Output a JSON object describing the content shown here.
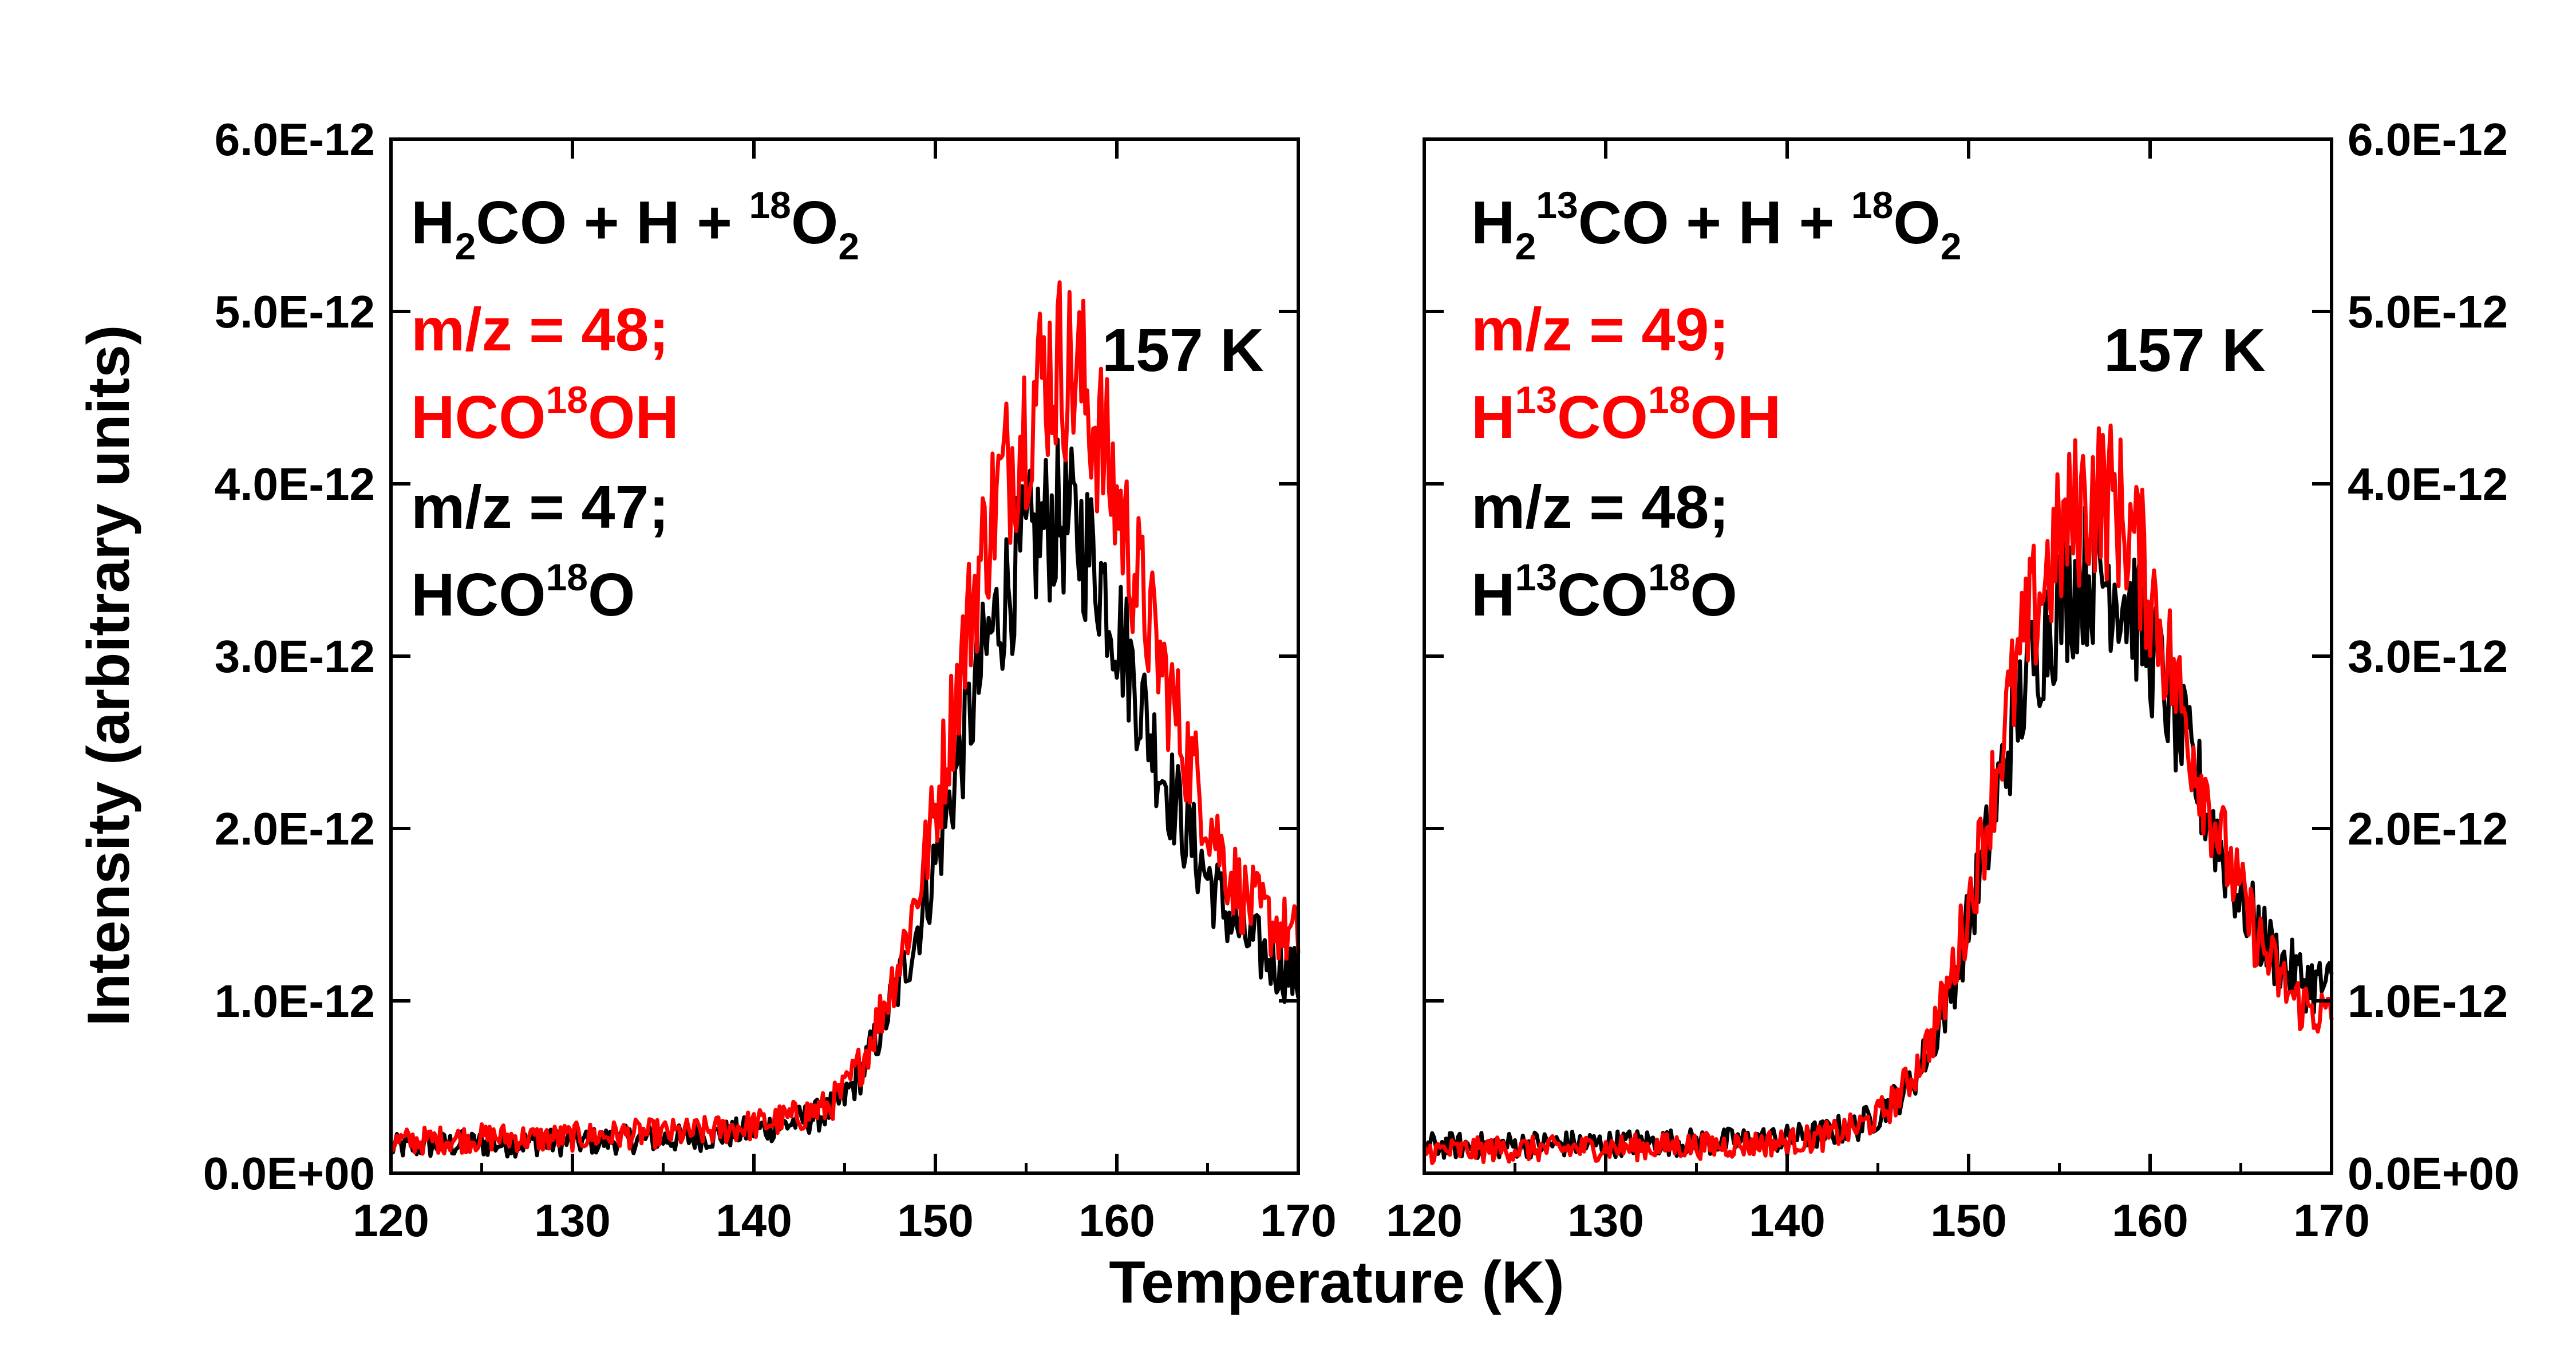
{
  "chart_data": [
    {
      "type": "line",
      "panel": "left",
      "x_range": [
        120,
        170
      ],
      "y_range": [
        0,
        6e-12
      ],
      "xlabel": "Temperature (K)",
      "ylabel": "Intensity (arbitrary units)",
      "x_ticks": [
        "120",
        "130",
        "140",
        "150",
        "160",
        "170"
      ],
      "y_ticks": [
        "0.0E+00",
        "1.0E-12",
        "2.0E-12",
        "3.0E-12",
        "4.0E-12",
        "5.0E-12",
        "6.0E-12"
      ],
      "y_axis_side": "left",
      "annotation": {
        "title_parts": [
          "H",
          "2",
          "CO + H + ",
          "18",
          "O",
          "2"
        ],
        "red_mz": "m/z = 48;",
        "red_species_parts": [
          "HCO",
          "18",
          "OH"
        ],
        "black_mz": "m/z = 47;",
        "black_species_parts": [
          "HCO",
          "18",
          "O"
        ],
        "peak_label": "157 K"
      },
      "series": [
        {
          "name": "m/z = 48; HCO18OH",
          "color": "#ff0000",
          "x": [
            120,
            122,
            124,
            126,
            128,
            130,
            132,
            134,
            136,
            138,
            140,
            142,
            144,
            145,
            146,
            147,
            148,
            149,
            150,
            151,
            152,
            153,
            154,
            155,
            156,
            157,
            158,
            159,
            160,
            161,
            162,
            163,
            164,
            165,
            166,
            167,
            168,
            169,
            170
          ],
          "y": [
            1.8e-13,
            1.9e-13,
            2e-13,
            2.1e-13,
            2e-13,
            2.1e-13,
            2.2e-13,
            2.3e-13,
            2.3e-13,
            2.5e-13,
            2.8e-13,
            3.2e-13,
            3.8e-13,
            4.8e-13,
            6.6e-13,
            9.3e-13,
            1.23e-12,
            1.62e-12,
            2.1e-12,
            2.7e-12,
            3.3e-12,
            3.8e-12,
            4.1e-12,
            4.4e-12,
            4.65e-12,
            4.7e-12,
            4.6e-12,
            4.3e-12,
            3.9e-12,
            3.5e-12,
            3.1e-12,
            2.75e-12,
            2.4e-12,
            2.1e-12,
            1.8e-12,
            1.6e-12,
            1.5e-12,
            1.42e-12,
            1.35e-12
          ]
        },
        {
          "name": "m/z = 47; HCO18O",
          "color": "#000000",
          "x": [
            120,
            122,
            124,
            126,
            128,
            130,
            132,
            134,
            136,
            138,
            140,
            142,
            144,
            145,
            146,
            147,
            148,
            149,
            150,
            151,
            152,
            153,
            154,
            155,
            156,
            157,
            158,
            159,
            160,
            161,
            162,
            163,
            164,
            165,
            166,
            167,
            168,
            169,
            170
          ],
          "y": [
            1.5e-13,
            1.6e-13,
            1.7e-13,
            1.7e-13,
            1.8e-13,
            1.8e-13,
            1.9e-13,
            2e-13,
            2e-13,
            2.2e-13,
            2.5e-13,
            2.9e-13,
            3.5e-13,
            4.4e-13,
            6e-13,
            8.4e-13,
            1.1e-12,
            1.42e-12,
            1.8e-12,
            2.25e-12,
            2.7e-12,
            3.1e-12,
            3.4e-12,
            3.6e-12,
            3.75e-12,
            3.8e-12,
            3.7e-12,
            3.5e-12,
            3.2e-12,
            2.85e-12,
            2.5e-12,
            2.2e-12,
            1.95e-12,
            1.72e-12,
            1.52e-12,
            1.38e-12,
            1.28e-12,
            1.2e-12,
            1.12e-12
          ]
        }
      ]
    },
    {
      "type": "line",
      "panel": "right",
      "x_range": [
        120,
        170
      ],
      "y_range": [
        0,
        6e-12
      ],
      "xlabel": "Temperature (K)",
      "x_ticks": [
        "120",
        "130",
        "140",
        "150",
        "160",
        "170"
      ],
      "y_ticks": [
        "0.0E+00",
        "1.0E-12",
        "2.0E-12",
        "3.0E-12",
        "4.0E-12",
        "5.0E-12",
        "6.0E-12"
      ],
      "y_axis_side": "right",
      "annotation": {
        "title_parts": [
          "H",
          "2",
          "13",
          "CO + H + ",
          "18",
          "O",
          "2"
        ],
        "red_mz": "m/z = 49;",
        "red_species_parts": [
          "H",
          "13",
          "CO",
          "18",
          "OH"
        ],
        "black_mz": "m/z = 48;",
        "black_species_parts": [
          "H",
          "13",
          "CO",
          "18",
          "O"
        ],
        "peak_label": "157 K"
      },
      "series": [
        {
          "name": "m/z = 49; H13CO18OH",
          "color": "#ff0000",
          "x": [
            120,
            122,
            124,
            126,
            128,
            130,
            132,
            134,
            136,
            138,
            140,
            142,
            144,
            145,
            146,
            147,
            148,
            149,
            150,
            151,
            152,
            153,
            154,
            155,
            156,
            157,
            158,
            159,
            160,
            161,
            162,
            163,
            164,
            165,
            166,
            167,
            168,
            169,
            170
          ],
          "y": [
            1.3e-13,
            1.3e-13,
            1.4e-13,
            1.4e-13,
            1.4e-13,
            1.5e-13,
            1.5e-13,
            1.6e-13,
            1.6e-13,
            1.7e-13,
            1.8e-13,
            2.1e-13,
            2.7e-13,
            3.3e-13,
            4.3e-13,
            5.8e-13,
            8e-13,
            1.12e-12,
            1.55e-12,
            2.05e-12,
            2.6e-12,
            3.05e-12,
            3.4e-12,
            3.65e-12,
            3.85e-12,
            3.95e-12,
            3.9e-12,
            3.7e-12,
            3.4e-12,
            3e-12,
            2.6e-12,
            2.25e-12,
            1.9e-12,
            1.6e-12,
            1.35e-12,
            1.15e-12,
            1e-12,
            9.5e-13,
            9e-13
          ]
        },
        {
          "name": "m/z = 48; H13CO18O",
          "color": "#000000",
          "x": [
            120,
            122,
            124,
            126,
            128,
            130,
            132,
            134,
            136,
            138,
            140,
            142,
            144,
            145,
            146,
            147,
            148,
            149,
            150,
            151,
            152,
            153,
            154,
            155,
            156,
            157,
            158,
            159,
            160,
            161,
            162,
            163,
            164,
            165,
            166,
            167,
            168,
            169,
            170
          ],
          "y": [
            1.6e-13,
            1.6e-13,
            1.6e-13,
            1.7e-13,
            1.7e-13,
            1.7e-13,
            1.8e-13,
            1.8e-13,
            1.8e-13,
            1.9e-13,
            2e-13,
            2.3e-13,
            2.8e-13,
            3.4e-13,
            4.3e-13,
            5.6e-13,
            7.6e-13,
            1.05e-12,
            1.45e-12,
            1.9e-12,
            2.4e-12,
            2.8e-12,
            3.1e-12,
            3.3e-12,
            3.45e-12,
            3.5e-12,
            3.45e-12,
            3.3e-12,
            3.05e-12,
            2.75e-12,
            2.45e-12,
            2.15e-12,
            1.85e-12,
            1.6e-12,
            1.4e-12,
            1.25e-12,
            1.15e-12,
            1.1e-12,
            1.08e-12
          ]
        }
      ]
    }
  ],
  "colors": {
    "red": "#ff0000",
    "black": "#000000"
  }
}
